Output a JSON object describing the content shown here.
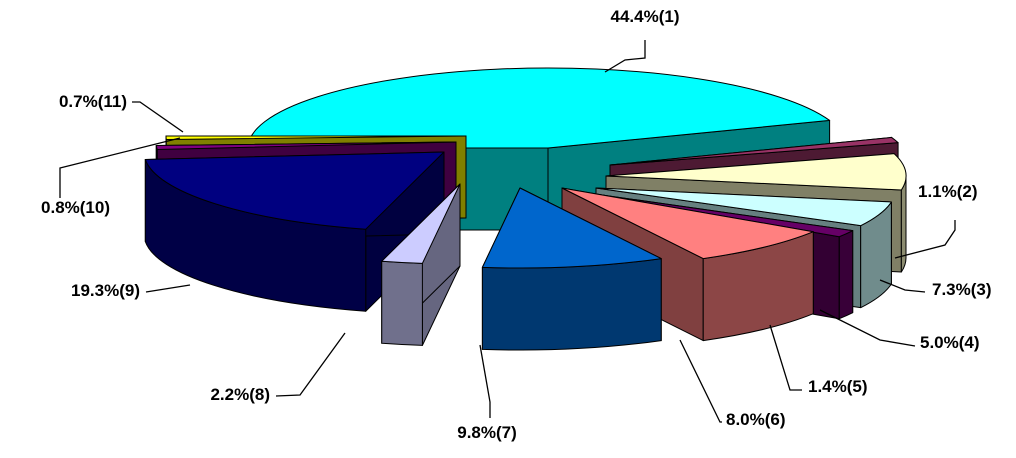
{
  "chart_data": {
    "type": "pie",
    "style": "3d-exploded",
    "title": "",
    "legend": "none",
    "label_format": "percent (index)",
    "slices": [
      {
        "index": 1,
        "value": 44.4,
        "label": "44.4%(1)",
        "color": "#00ffff"
      },
      {
        "index": 2,
        "value": 1.1,
        "label": "1.1%(2)",
        "color": "#993366"
      },
      {
        "index": 3,
        "value": 7.3,
        "label": "7.3%(3)",
        "color": "#ffffcc"
      },
      {
        "index": 4,
        "value": 5.0,
        "label": "5.0%(4)",
        "color": "#ccffff"
      },
      {
        "index": 5,
        "value": 1.4,
        "label": "1.4%(5)",
        "color": "#660066"
      },
      {
        "index": 6,
        "value": 8.0,
        "label": "8.0%(6)",
        "color": "#ff8080"
      },
      {
        "index": 7,
        "value": 9.8,
        "label": "9.8%(7)",
        "color": "#0066cc"
      },
      {
        "index": 8,
        "value": 2.2,
        "label": "2.2%(8)",
        "color": "#ccccff"
      },
      {
        "index": 9,
        "value": 19.3,
        "label": "19.3%(9)",
        "color": "#000080"
      },
      {
        "index": 10,
        "value": 0.8,
        "label": "0.8%(10)",
        "color": "#800080"
      },
      {
        "index": 11,
        "value": 0.7,
        "label": "0.7%(11)",
        "color": "#ffff00"
      }
    ]
  }
}
